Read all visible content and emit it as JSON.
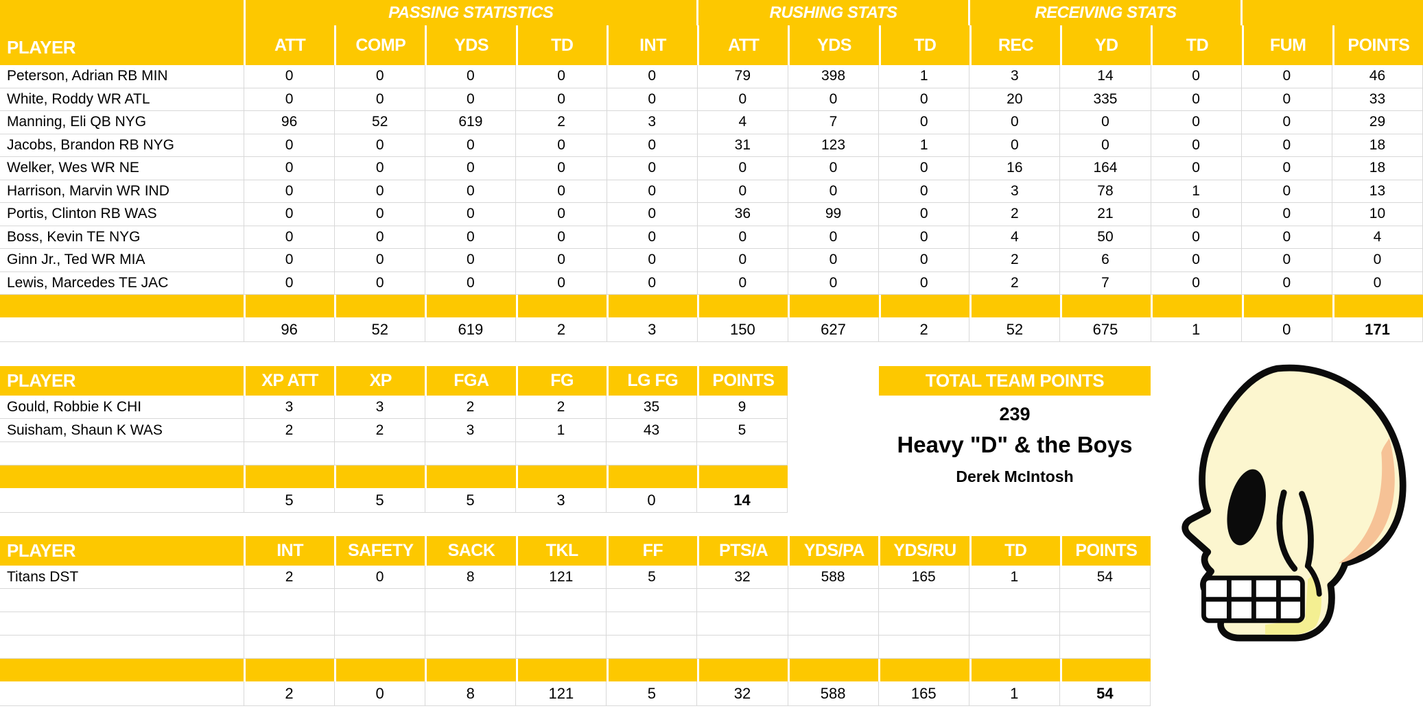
{
  "colors": {
    "header_yellow": "#FDC800",
    "gridline": "#D8D8D8",
    "header_text": "#FFFFFF",
    "data_text": "#000000"
  },
  "offense_table": {
    "player_header": "PLAYER",
    "group_headers": [
      "PASSING STATISTICS",
      "RUSHING STATS",
      "RECEIVING STATS"
    ],
    "columns": [
      "ATT",
      "COMP",
      "YDS",
      "TD",
      "INT",
      "ATT",
      "YDS",
      "TD",
      "REC",
      "YD",
      "TD",
      "FUM",
      "POINTS"
    ],
    "rows": [
      {
        "player": "Peterson, Adrian RB MIN",
        "values": [
          0,
          0,
          0,
          0,
          0,
          79,
          398,
          1,
          3,
          14,
          0,
          0,
          46
        ]
      },
      {
        "player": "White, Roddy WR ATL",
        "values": [
          0,
          0,
          0,
          0,
          0,
          0,
          0,
          0,
          20,
          335,
          0,
          0,
          33
        ]
      },
      {
        "player": "Manning, Eli QB NYG",
        "values": [
          96,
          52,
          619,
          2,
          3,
          4,
          7,
          0,
          0,
          0,
          0,
          0,
          29
        ]
      },
      {
        "player": "Jacobs, Brandon RB NYG",
        "values": [
          0,
          0,
          0,
          0,
          0,
          31,
          123,
          1,
          0,
          0,
          0,
          0,
          18
        ]
      },
      {
        "player": "Welker, Wes WR NE",
        "values": [
          0,
          0,
          0,
          0,
          0,
          0,
          0,
          0,
          16,
          164,
          0,
          0,
          18
        ]
      },
      {
        "player": "Harrison, Marvin WR IND",
        "values": [
          0,
          0,
          0,
          0,
          0,
          0,
          0,
          0,
          3,
          78,
          1,
          0,
          13
        ]
      },
      {
        "player": "Portis, Clinton RB WAS",
        "values": [
          0,
          0,
          0,
          0,
          0,
          36,
          99,
          0,
          2,
          21,
          0,
          0,
          10
        ]
      },
      {
        "player": "Boss, Kevin TE NYG",
        "values": [
          0,
          0,
          0,
          0,
          0,
          0,
          0,
          0,
          4,
          50,
          0,
          0,
          4
        ]
      },
      {
        "player": "Ginn Jr., Ted WR MIA",
        "values": [
          0,
          0,
          0,
          0,
          0,
          0,
          0,
          0,
          2,
          6,
          0,
          0,
          0
        ]
      },
      {
        "player": "Lewis, Marcedes TE JAC",
        "values": [
          0,
          0,
          0,
          0,
          0,
          0,
          0,
          0,
          2,
          7,
          0,
          0,
          0
        ]
      }
    ],
    "empty_rows": 0,
    "totals": [
      96,
      52,
      619,
      2,
      3,
      150,
      627,
      2,
      52,
      675,
      1,
      0,
      171
    ]
  },
  "kicker_table": {
    "player_header": "PLAYER",
    "columns": [
      "XP ATT",
      "XP",
      "FGA",
      "FG",
      "LG FG",
      "POINTS"
    ],
    "rows": [
      {
        "player": "Gould, Robbie K CHI",
        "values": [
          3,
          3,
          2,
          2,
          35,
          9
        ]
      },
      {
        "player": "Suisham, Shaun K WAS",
        "values": [
          2,
          2,
          3,
          1,
          43,
          5
        ]
      }
    ],
    "empty_rows": 1,
    "totals": [
      5,
      5,
      5,
      3,
      0,
      14
    ]
  },
  "dst_table": {
    "player_header": "PLAYER",
    "columns": [
      "INT",
      "SAFETY",
      "SACK",
      "TKL",
      "FF",
      "PTS/A",
      "YDS/PA",
      "YDS/RU",
      "TD",
      "POINTS"
    ],
    "rows": [
      {
        "player": "Titans DST",
        "values": [
          2,
          0,
          8,
          121,
          5,
          32,
          588,
          165,
          1,
          54
        ]
      }
    ],
    "empty_rows": 3,
    "totals": [
      2,
      0,
      8,
      121,
      5,
      32,
      588,
      165,
      1,
      54
    ]
  },
  "team_summary": {
    "title": "TOTAL TEAM POINTS",
    "total_points": "239",
    "team_name": "Heavy \"D\" & the Boys",
    "owner": "Derek McIntosh"
  },
  "decoration": {
    "skull_image": "cartoon-skull-side-profile"
  }
}
